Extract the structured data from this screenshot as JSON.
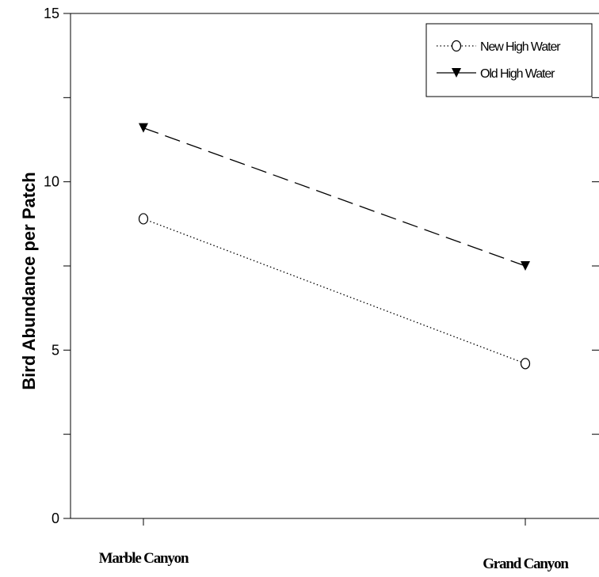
{
  "chart_data": {
    "type": "line",
    "title": "",
    "xlabel": "",
    "ylabel": "Bird Abundance per Patch",
    "categories": [
      "Marble Canyon",
      "Grand Canyon"
    ],
    "ylim": [
      0,
      15
    ],
    "yticks": [
      0,
      5,
      10,
      15
    ],
    "grid": false,
    "legend_position": "top-right",
    "series": [
      {
        "name": "New High Water",
        "values": [
          8.9,
          4.6
        ],
        "marker": "open-circle",
        "line": "dotted",
        "color": "#000000"
      },
      {
        "name": "Old High Water",
        "values": [
          11.6,
          7.5
        ],
        "marker": "filled-triangle-down",
        "line": "dashed",
        "color": "#000000"
      }
    ]
  }
}
